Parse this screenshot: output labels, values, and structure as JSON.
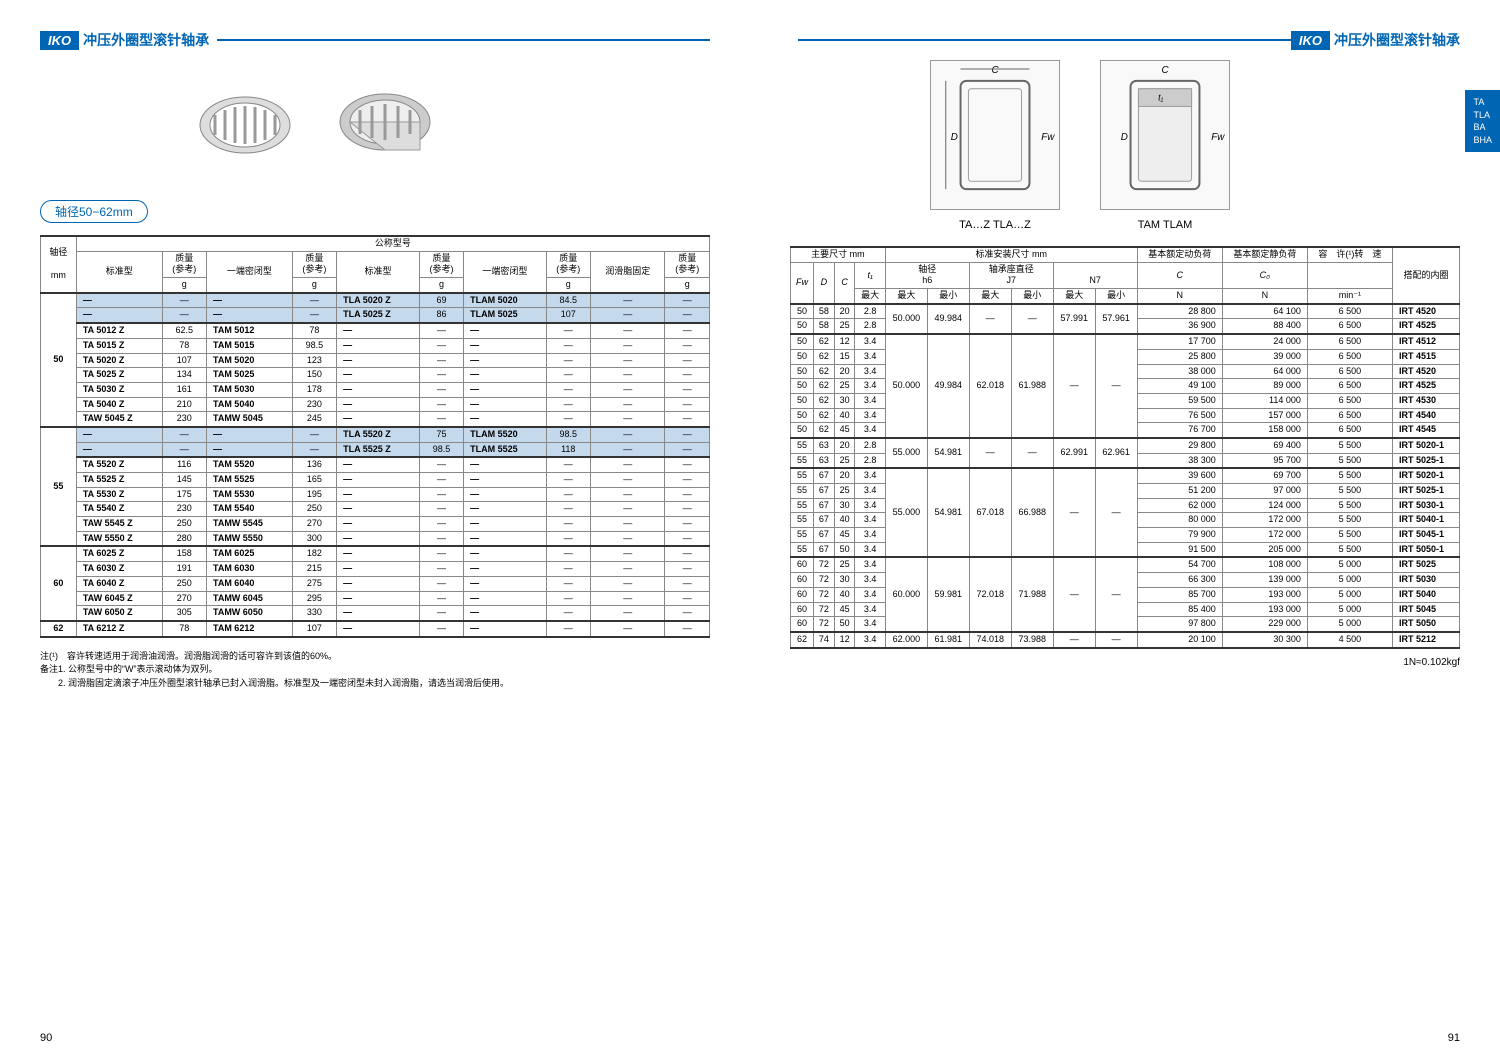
{
  "brand": "IKO",
  "headerTitle": "冲压外圈型滚针轴承",
  "sideTab": [
    "TA",
    "TLA",
    "BA",
    "BHA"
  ],
  "shaftRange": "轴径50−62mm",
  "diagramLabels": [
    "TA…Z  TLA…Z",
    "TAM  TLAM"
  ],
  "leftHeaders": {
    "main": "公称型号",
    "shaft": "轴径",
    "mm": "mm",
    "std": "标准型",
    "mass": "质量",
    "ref": "(参考)",
    "g": "g",
    "closed": "一端密闭型",
    "grease": "润滑脂固定"
  },
  "leftRows": [
    {
      "shaft": "50",
      "hl": true,
      "cells": [
        "—",
        "—",
        "—",
        "—",
        "TLA 5020 Z",
        "69",
        "TLAM  5020",
        "84.5",
        "—",
        "—"
      ]
    },
    {
      "shaft": "",
      "hl": true,
      "cells": [
        "—",
        "—",
        "—",
        "—",
        "TLA 5025 Z",
        "86",
        "TLAM  5025",
        "107",
        "—",
        "—"
      ]
    },
    {
      "shaft": "",
      "hl": false,
      "cells": [
        "TA   5012 Z",
        "62.5",
        "TAM   5012",
        "78",
        "—",
        "—",
        "—",
        "—",
        "—",
        "—"
      ]
    },
    {
      "shaft": "",
      "hl": false,
      "cells": [
        "TA   5015 Z",
        "78",
        "TAM   5015",
        "98.5",
        "—",
        "—",
        "—",
        "—",
        "—",
        "—"
      ]
    },
    {
      "shaft": "",
      "hl": false,
      "cells": [
        "TA   5020 Z",
        "107",
        "TAM   5020",
        "123",
        "—",
        "—",
        "—",
        "—",
        "—",
        "—"
      ]
    },
    {
      "shaft": "",
      "hl": false,
      "cells": [
        "TA   5025 Z",
        "134",
        "TAM   5025",
        "150",
        "—",
        "—",
        "—",
        "—",
        "—",
        "—"
      ]
    },
    {
      "shaft": "",
      "hl": false,
      "cells": [
        "TA   5030 Z",
        "161",
        "TAM   5030",
        "178",
        "—",
        "—",
        "—",
        "—",
        "—",
        "—"
      ]
    },
    {
      "shaft": "",
      "hl": false,
      "cells": [
        "TA   5040 Z",
        "210",
        "TAM   5040",
        "230",
        "—",
        "—",
        "—",
        "—",
        "—",
        "—"
      ]
    },
    {
      "shaft": "",
      "hl": false,
      "cells": [
        "TAW 5045 Z",
        "230",
        "TAMW 5045",
        "245",
        "—",
        "—",
        "—",
        "—",
        "—",
        "—"
      ]
    },
    {
      "shaft": "55",
      "hl": true,
      "cells": [
        "—",
        "—",
        "—",
        "—",
        "TLA 5520 Z",
        "75",
        "TLAM  5520",
        "98.5",
        "—",
        "—"
      ]
    },
    {
      "shaft": "",
      "hl": true,
      "cells": [
        "—",
        "—",
        "—",
        "—",
        "TLA 5525 Z",
        "98.5",
        "TLAM  5525",
        "118",
        "—",
        "—"
      ]
    },
    {
      "shaft": "",
      "hl": false,
      "cells": [
        "TA   5520 Z",
        "116",
        "TAM   5520",
        "136",
        "—",
        "—",
        "—",
        "—",
        "—",
        "—"
      ]
    },
    {
      "shaft": "",
      "hl": false,
      "cells": [
        "TA   5525 Z",
        "145",
        "TAM   5525",
        "165",
        "—",
        "—",
        "—",
        "—",
        "—",
        "—"
      ]
    },
    {
      "shaft": "",
      "hl": false,
      "cells": [
        "TA   5530 Z",
        "175",
        "TAM   5530",
        "195",
        "—",
        "—",
        "—",
        "—",
        "—",
        "—"
      ]
    },
    {
      "shaft": "",
      "hl": false,
      "cells": [
        "TA   5540 Z",
        "230",
        "TAM   5540",
        "250",
        "—",
        "—",
        "—",
        "—",
        "—",
        "—"
      ]
    },
    {
      "shaft": "",
      "hl": false,
      "cells": [
        "TAW 5545 Z",
        "250",
        "TAMW 5545",
        "270",
        "—",
        "—",
        "—",
        "—",
        "—",
        "—"
      ]
    },
    {
      "shaft": "",
      "hl": false,
      "cells": [
        "TAW 5550 Z",
        "280",
        "TAMW 5550",
        "300",
        "—",
        "—",
        "—",
        "—",
        "—",
        "—"
      ]
    },
    {
      "shaft": "60",
      "hl": false,
      "cells": [
        "TA   6025 Z",
        "158",
        "TAM   6025",
        "182",
        "—",
        "—",
        "—",
        "—",
        "—",
        "—"
      ]
    },
    {
      "shaft": "",
      "hl": false,
      "cells": [
        "TA   6030 Z",
        "191",
        "TAM   6030",
        "215",
        "—",
        "—",
        "—",
        "—",
        "—",
        "—"
      ]
    },
    {
      "shaft": "",
      "hl": false,
      "cells": [
        "TA   6040 Z",
        "250",
        "TAM   6040",
        "275",
        "—",
        "—",
        "—",
        "—",
        "—",
        "—"
      ]
    },
    {
      "shaft": "",
      "hl": false,
      "cells": [
        "TAW 6045 Z",
        "270",
        "TAMW 6045",
        "295",
        "—",
        "—",
        "—",
        "—",
        "—",
        "—"
      ]
    },
    {
      "shaft": "",
      "hl": false,
      "cells": [
        "TAW 6050 Z",
        "305",
        "TAMW 6050",
        "330",
        "—",
        "—",
        "—",
        "—",
        "—",
        "—"
      ]
    },
    {
      "shaft": "62",
      "hl": false,
      "cells": [
        "TA   6212 Z",
        "78",
        "TAM   6212",
        "107",
        "—",
        "—",
        "—",
        "—",
        "—",
        "—"
      ]
    }
  ],
  "leftShaftSpans": [
    9,
    8,
    5,
    1
  ],
  "leftGroupBreaks": [
    2,
    9,
    11,
    17,
    22
  ],
  "rightHeaders": {
    "dim": "主要尺寸  mm",
    "install": "标准安装尺寸  mm",
    "dyn": "基本额定动负荷",
    "stat": "基本额定静负荷",
    "speed": "容　许(¹)转　速",
    "inner": "搭配的内圈",
    "shaftD": "轴径",
    "housing": "轴承座直径",
    "Fw": "Fw",
    "D": "D",
    "C": "C",
    "t1": "t₁",
    "max": "最大",
    "min": "最小",
    "h6": "h6",
    "J7": "J7",
    "N7": "N7",
    "Csym": "C",
    "C0": "C₀",
    "N": "N",
    "minInv": "min⁻¹"
  },
  "rightRows": [
    [
      "50",
      "58",
      "20",
      "2.8",
      "50.000",
      "49.984",
      "—",
      "—",
      "57.991",
      "57.961",
      "28 800",
      "64 100",
      "6 500",
      "IRT 4520"
    ],
    [
      "50",
      "58",
      "25",
      "2.8",
      "",
      "",
      "",
      "",
      "",
      "",
      "36 900",
      "88 400",
      "6 500",
      "IRT 4525"
    ],
    [
      "50",
      "62",
      "12",
      "3.4",
      "50.000",
      "49.984",
      "62.018",
      "61.988",
      "—",
      "—",
      "17 700",
      "24 000",
      "6 500",
      "IRT 4512"
    ],
    [
      "50",
      "62",
      "15",
      "3.4",
      "",
      "",
      "",
      "",
      "",
      "",
      "25 800",
      "39 000",
      "6 500",
      "IRT 4515"
    ],
    [
      "50",
      "62",
      "20",
      "3.4",
      "",
      "",
      "",
      "",
      "",
      "",
      "38 000",
      "64 000",
      "6 500",
      "IRT 4520"
    ],
    [
      "50",
      "62",
      "25",
      "3.4",
      "",
      "",
      "",
      "",
      "",
      "",
      "49 100",
      "89 000",
      "6 500",
      "IRT 4525"
    ],
    [
      "50",
      "62",
      "30",
      "3.4",
      "",
      "",
      "",
      "",
      "",
      "",
      "59 500",
      "114 000",
      "6 500",
      "IRT 4530"
    ],
    [
      "50",
      "62",
      "40",
      "3.4",
      "",
      "",
      "",
      "",
      "",
      "",
      "76 500",
      "157 000",
      "6 500",
      "IRT 4540"
    ],
    [
      "50",
      "62",
      "45",
      "3.4",
      "",
      "",
      "",
      "",
      "",
      "",
      "76 700",
      "158 000",
      "6 500",
      "IRT 4545"
    ],
    [
      "55",
      "63",
      "20",
      "2.8",
      "55.000",
      "54.981",
      "—",
      "—",
      "62.991",
      "62.961",
      "29 800",
      "69 400",
      "5 500",
      "IRT 5020-1"
    ],
    [
      "55",
      "63",
      "25",
      "2.8",
      "",
      "",
      "",
      "",
      "",
      "",
      "38 300",
      "95 700",
      "5 500",
      "IRT 5025-1"
    ],
    [
      "55",
      "67",
      "20",
      "3.4",
      "55.000",
      "54.981",
      "67.018",
      "66.988",
      "—",
      "—",
      "39 600",
      "69 700",
      "5 500",
      "IRT 5020-1"
    ],
    [
      "55",
      "67",
      "25",
      "3.4",
      "",
      "",
      "",
      "",
      "",
      "",
      "51 200",
      "97 000",
      "5 500",
      "IRT 5025-1"
    ],
    [
      "55",
      "67",
      "30",
      "3.4",
      "",
      "",
      "",
      "",
      "",
      "",
      "62 000",
      "124 000",
      "5 500",
      "IRT 5030-1"
    ],
    [
      "55",
      "67",
      "40",
      "3.4",
      "",
      "",
      "",
      "",
      "",
      "",
      "80 000",
      "172 000",
      "5 500",
      "IRT 5040-1"
    ],
    [
      "55",
      "67",
      "45",
      "3.4",
      "",
      "",
      "",
      "",
      "",
      "",
      "79 900",
      "172 000",
      "5 500",
      "IRT 5045-1"
    ],
    [
      "55",
      "67",
      "50",
      "3.4",
      "",
      "",
      "",
      "",
      "",
      "",
      "91 500",
      "205 000",
      "5 500",
      "IRT 5050-1"
    ],
    [
      "60",
      "72",
      "25",
      "3.4",
      "60.000",
      "59.981",
      "72.018",
      "71.988",
      "—",
      "—",
      "54 700",
      "108 000",
      "5 000",
      "IRT 5025"
    ],
    [
      "60",
      "72",
      "30",
      "3.4",
      "",
      "",
      "",
      "",
      "",
      "",
      "66 300",
      "139 000",
      "5 000",
      "IRT 5030"
    ],
    [
      "60",
      "72",
      "40",
      "3.4",
      "",
      "",
      "",
      "",
      "",
      "",
      "85 700",
      "193 000",
      "5 000",
      "IRT 5040"
    ],
    [
      "60",
      "72",
      "45",
      "3.4",
      "",
      "",
      "",
      "",
      "",
      "",
      "85 400",
      "193 000",
      "5 000",
      "IRT 5045"
    ],
    [
      "60",
      "72",
      "50",
      "3.4",
      "",
      "",
      "",
      "",
      "",
      "",
      "97 800",
      "229 000",
      "5 000",
      "IRT 5050"
    ],
    [
      "62",
      "74",
      "12",
      "3.4",
      "62.000",
      "61.981",
      "74.018",
      "73.988",
      "—",
      "—",
      "20 100",
      "30 300",
      "4 500",
      "IRT 5212"
    ]
  ],
  "rightSpans": {
    "4": [
      2,
      7,
      2,
      6,
      5,
      1
    ],
    "5": [
      2,
      7,
      2,
      6,
      5,
      1
    ],
    "6": [
      2,
      7,
      2,
      6,
      5,
      1
    ],
    "7": [
      2,
      7,
      2,
      6,
      5,
      1
    ],
    "8": [
      2,
      7,
      2,
      6,
      5,
      1
    ],
    "9": [
      2,
      7,
      2,
      6,
      5,
      1
    ]
  },
  "rightGroupBreaks": [
    2,
    9,
    11,
    17,
    22
  ],
  "notes": {
    "n1": "注(¹)　容许转速适用于润滑油润滑。润滑脂润滑的话可容许到该值的60%。",
    "n2": "备注1. 公称型号中的“W”表示滚动体为双列。",
    "n3": "　　2. 润滑脂固定滴滚子冲压外圈型滚针轴承已封入润滑脂。标准型及一端密闭型未封入润滑脂，请选当润滑后使用。"
  },
  "footnoteRight": "1N≈0.102kgf",
  "pageNums": [
    "90",
    "91"
  ]
}
